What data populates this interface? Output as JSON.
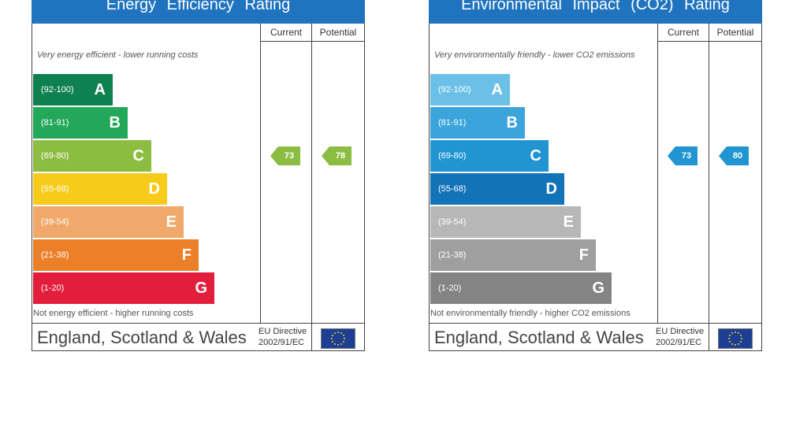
{
  "panels": [
    {
      "title": "Energy  Efficiency  Rating",
      "columns": {
        "current": "Current",
        "potential": "Potential"
      },
      "top_note": "Very energy efficient - lower running costs",
      "bottom_note": "Not energy efficient - higher running costs",
      "footer": {
        "region": "England, Scotland & Wales",
        "directive_line1": "EU Directive",
        "directive_line2": "2002/91/EC"
      },
      "chart_data": {
        "type": "bar",
        "categories": [
          "(92-100)",
          "(81-91)",
          "(69-80)",
          "(55-68)",
          "(39-54)",
          "(21-38)",
          "(1-20)"
        ],
        "letters": [
          "A",
          "B",
          "C",
          "D",
          "E",
          "F",
          "G"
        ],
        "colors": [
          "#0f8150",
          "#23a85a",
          "#8cbd42",
          "#f6cb1a",
          "#f0a96a",
          "#ec8029",
          "#e21e3c"
        ],
        "current": {
          "value": 73,
          "band": "C",
          "color": "#8cbd42"
        },
        "potential": {
          "value": 78,
          "band": "C",
          "color": "#8cbd42"
        }
      }
    },
    {
      "title": "Environmental  Impact  (CO2)  Rating",
      "columns": {
        "current": "Current",
        "potential": "Potential"
      },
      "top_note": "Very environmentally friendly - lower CO2 emissions",
      "bottom_note": "Not environmentally friendly - higher CO2 emissions",
      "footer": {
        "region": "England, Scotland & Wales",
        "directive_line1": "EU Directive",
        "directive_line2": "2002/91/EC"
      },
      "chart_data": {
        "type": "bar",
        "categories": [
          "(92-100)",
          "(81-91)",
          "(69-80)",
          "(55-68)",
          "(39-54)",
          "(21-38)",
          "(1-20)"
        ],
        "letters": [
          "A",
          "B",
          "C",
          "D",
          "E",
          "F",
          "G"
        ],
        "colors": [
          "#6bc0e8",
          "#3aa4db",
          "#2095d2",
          "#1273b8",
          "#b7b7b7",
          "#9f9f9f",
          "#848484"
        ],
        "current": {
          "value": 73,
          "band": "C",
          "color": "#2095d2"
        },
        "potential": {
          "value": 80,
          "band": "C",
          "color": "#2095d2"
        }
      }
    }
  ]
}
